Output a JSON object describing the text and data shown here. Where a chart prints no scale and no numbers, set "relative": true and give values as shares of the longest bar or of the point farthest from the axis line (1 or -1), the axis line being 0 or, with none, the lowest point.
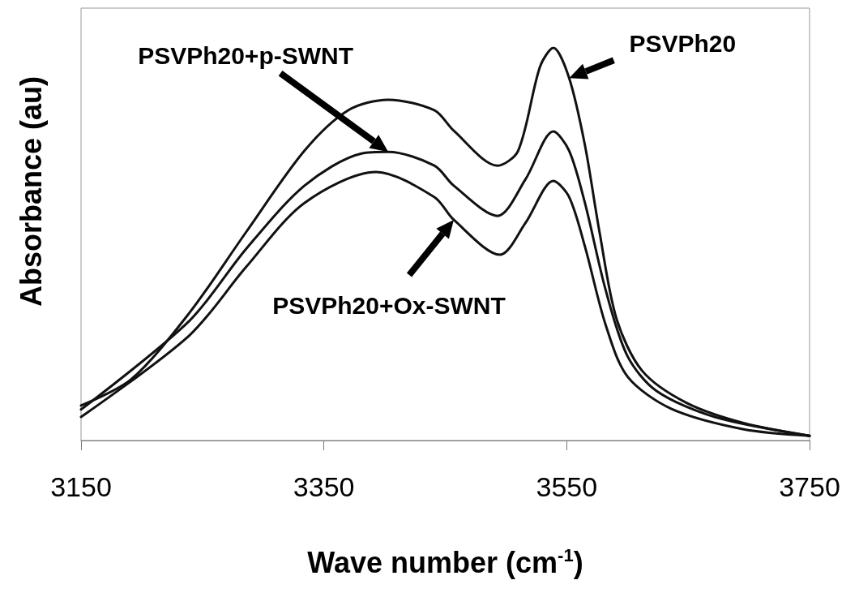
{
  "chart_data": {
    "type": "line",
    "relative": true,
    "xlabel": "Wave number (cm$^{-1}$)",
    "ylabel": "Absorbance (au)",
    "xlim": [
      3150,
      3750
    ],
    "xticks": [
      3150,
      3350,
      3550,
      3750
    ],
    "grid": false,
    "marker": "none",
    "line_style": "solid",
    "series": [
      {
        "name": "PSVPh20",
        "color": "#111111",
        "x": [
          3150,
          3191,
          3239,
          3286,
          3334,
          3370,
          3403,
          3441,
          3457,
          3493,
          3510,
          3528,
          3539,
          3552,
          3565,
          3577,
          3591,
          3612,
          3648,
          3695,
          3750
        ],
        "values": [
          0.089,
          0.155,
          0.324,
          0.531,
          0.738,
          0.841,
          0.868,
          0.841,
          0.789,
          0.7,
          0.738,
          0.952,
          1,
          0.923,
          0.752,
          0.531,
          0.31,
          0.178,
          0.097,
          0.045,
          0.012
        ]
      },
      {
        "name": "PSVPh20+p-SWNT",
        "color": "#111111",
        "x": [
          3150,
          3239,
          3286,
          3334,
          3381,
          3403,
          3441,
          3457,
          3493,
          3516,
          3539,
          3552,
          3565,
          3582,
          3600,
          3624,
          3672,
          3750
        ],
        "values": [
          0.079,
          0.304,
          0.488,
          0.649,
          0.731,
          0.735,
          0.7,
          0.649,
          0.572,
          0.665,
          0.787,
          0.738,
          0.605,
          0.384,
          0.215,
          0.126,
          0.06,
          0.012
        ]
      },
      {
        "name": "PSVPh20+Ox-SWNT",
        "color": "#111111",
        "x": [
          3150,
          3239,
          3286,
          3334,
          3393,
          3441,
          3457,
          3495,
          3516,
          3539,
          3552,
          3565,
          3582,
          3600,
          3636,
          3695,
          3750
        ],
        "values": [
          0.06,
          0.267,
          0.442,
          0.605,
          0.684,
          0.62,
          0.562,
          0.473,
          0.554,
          0.661,
          0.62,
          0.494,
          0.295,
          0.163,
          0.081,
          0.029,
          0.012
        ]
      }
    ]
  }
}
